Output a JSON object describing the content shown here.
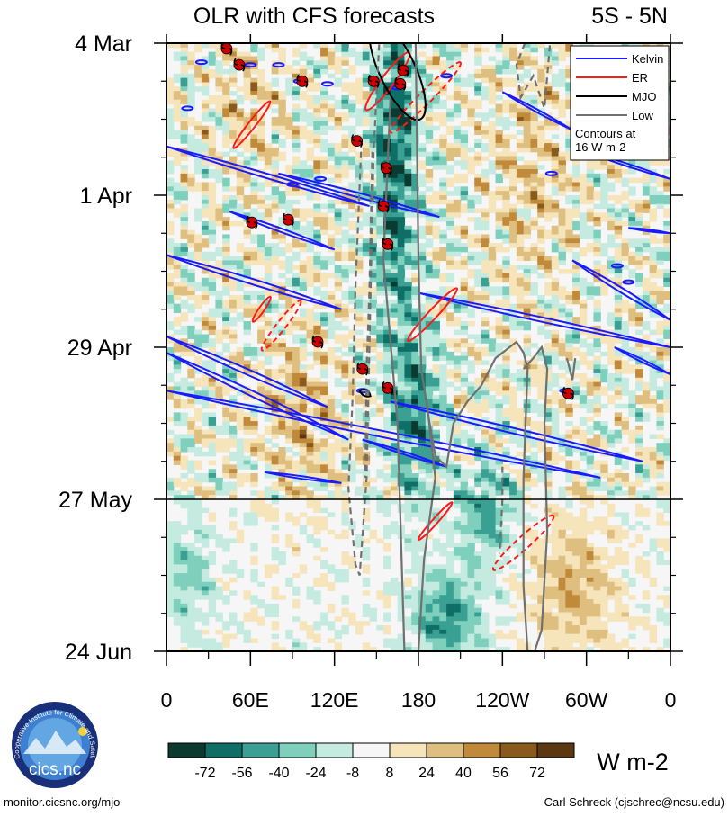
{
  "chart_data": {
    "type": "heatmap",
    "title": "OLR with CFS forecasts",
    "region": "5S - 5N",
    "xaxis": {
      "ticks": [
        {
          "lon": 0,
          "label": "0"
        },
        {
          "lon": 60,
          "label": "60E"
        },
        {
          "lon": 120,
          "label": "120E"
        },
        {
          "lon": 180,
          "label": "180"
        },
        {
          "lon": 240,
          "label": "120W"
        },
        {
          "lon": 300,
          "label": "60W"
        },
        {
          "lon": 360,
          "label": "0"
        }
      ],
      "range": [
        0,
        360
      ]
    },
    "yaxis": {
      "ticks": [
        {
          "day": 0,
          "label": "4 Mar"
        },
        {
          "day": 28,
          "label": "1 Apr"
        },
        {
          "day": 56,
          "label": "29 Apr"
        },
        {
          "day": 84,
          "label": "27 May"
        },
        {
          "day": 112,
          "label": "24 Jun"
        }
      ],
      "range": [
        0,
        112
      ],
      "forecast_start_day": 84
    },
    "legend": {
      "position": "top-right",
      "entries": [
        {
          "name": "Kelvin",
          "color": "#1a1aff",
          "style": "solid"
        },
        {
          "name": "ER",
          "color": "#ff1a1a",
          "style": "solid"
        },
        {
          "name": "MJO",
          "color": "#000000",
          "style": "solid"
        },
        {
          "name": "Low",
          "color": "#707070",
          "style": "solid"
        }
      ],
      "note_lines": [
        "Contours at",
        "16 W m-2"
      ]
    },
    "colorbar": {
      "unit": "W m-2",
      "labels": [
        "-72",
        "-56",
        "-40",
        "-24",
        "-8",
        "8",
        "24",
        "40",
        "56",
        "72"
      ],
      "colors": [
        "#0c3a30",
        "#0f6f66",
        "#3aa093",
        "#7fcfbd",
        "#c5ebe0",
        "#f6f6f6",
        "#f6e4bb",
        "#dfbf7f",
        "#c08a3a",
        "#8a5a1c",
        "#5b3812"
      ]
    },
    "cyclones": [
      {
        "lon": 43,
        "day": 1
      },
      {
        "lon": 52,
        "day": 4
      },
      {
        "lon": 97,
        "day": 7
      },
      {
        "lon": 148,
        "day": 7
      },
      {
        "lon": 169,
        "day": 5
      },
      {
        "lon": 167,
        "day": 7.5
      },
      {
        "lon": 136,
        "day": 18
      },
      {
        "lon": 157,
        "day": 23
      },
      {
        "lon": 155,
        "day": 30
      },
      {
        "lon": 61,
        "day": 33
      },
      {
        "lon": 87,
        "day": 32.5
      },
      {
        "lon": 158,
        "day": 37
      },
      {
        "lon": 108,
        "day": 55
      },
      {
        "lon": 140,
        "day": 60
      },
      {
        "lon": 158,
        "day": 63.5
      },
      {
        "lon": 287,
        "day": 64.5
      }
    ]
  },
  "footer": {
    "left": "monitor.cicsnc.org/mjo",
    "right": "Carl Schreck (cjschrec@ncsu.edu)"
  },
  "logo": {
    "text": "cics.nc",
    "arc_text": "Cooperative Institute for Climate and Satellites"
  }
}
